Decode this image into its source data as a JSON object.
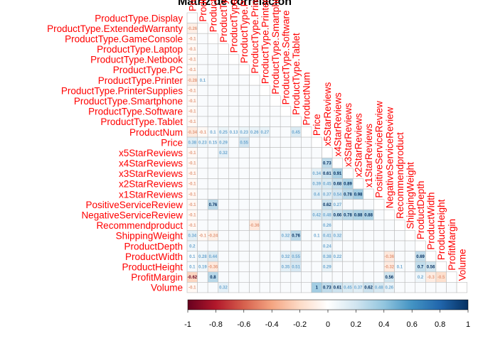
{
  "chart_data": {
    "type": "heatmap",
    "title": "Matriz de correlacion",
    "variables": [
      "ProductType.Display",
      "ProductType.ExtendedWarranty",
      "ProductType.GameConsole",
      "ProductType.Laptop",
      "ProductType.Netbook",
      "ProductType.PC",
      "ProductType.Printer",
      "ProductType.PrinterSupplies",
      "ProductType.Smartphone",
      "ProductType.Software",
      "ProductType.Tablet",
      "ProductNum",
      "Price",
      "x5StarReviews",
      "x4StarReviews",
      "x3StarReviews",
      "x2StarReviews",
      "x1StarReviews",
      "PositiveServiceReview",
      "NegativeServiceReview",
      "Recommendproduct",
      "ShippingWeight",
      "ProductDepth",
      "ProductWidth",
      "ProductHeight",
      "ProfitMargin",
      "Volume"
    ],
    "layout": "lower-triangle",
    "color_scale": {
      "range": [
        -1,
        1
      ],
      "ticks": [
        "-1",
        "-0.8",
        "-0.6",
        "-0.4",
        "-0.2",
        "0",
        "0.2",
        "0.4",
        "0.6",
        "0.8",
        "1"
      ],
      "colors": [
        "#67001F",
        "#B2182B",
        "#D6604D",
        "#F4A582",
        "#FDDBC7",
        "#FFFFFF",
        "#D1E5F0",
        "#92C5DE",
        "#4393C3",
        "#2166AC",
        "#053061"
      ]
    },
    "cells": [
      [
        1,
        0,
        -0.26
      ],
      [
        2,
        0,
        -0.1
      ],
      [
        3,
        0,
        -0.1
      ],
      [
        4,
        0,
        -0.1
      ],
      [
        5,
        0,
        -0.1
      ],
      [
        6,
        0,
        -0.28
      ],
      [
        7,
        0,
        -0.1
      ],
      [
        8,
        0,
        -0.1
      ],
      [
        9,
        0,
        -0.1
      ],
      [
        10,
        0,
        -0.1
      ],
      [
        11,
        0,
        -0.34
      ],
      [
        12,
        0,
        0.38
      ],
      [
        13,
        0,
        -0.1
      ],
      [
        14,
        0,
        -0.1
      ],
      [
        15,
        0,
        -0.1
      ],
      [
        16,
        0,
        -0.1
      ],
      [
        17,
        0,
        -0.1
      ],
      [
        18,
        0,
        -0.1
      ],
      [
        19,
        0,
        -0.1
      ],
      [
        20,
        0,
        -0.1
      ],
      [
        21,
        0,
        0.34
      ],
      [
        22,
        0,
        0.2
      ],
      [
        23,
        0,
        0.1
      ],
      [
        24,
        0,
        0.1
      ],
      [
        25,
        0,
        -0.62
      ],
      [
        26,
        0,
        -0.1
      ],
      [
        6,
        1,
        0.1
      ],
      [
        11,
        1,
        -0.1
      ],
      [
        12,
        1,
        0.23
      ],
      [
        21,
        1,
        -0.1
      ],
      [
        23,
        1,
        0.28
      ],
      [
        24,
        1,
        0.19
      ],
      [
        23,
        2,
        0.44
      ],
      [
        24,
        2,
        -0.36
      ],
      [
        25,
        2,
        0.8
      ],
      [
        18,
        2,
        0.76
      ],
      [
        21,
        2,
        -0.24
      ],
      [
        12,
        2,
        0.15
      ],
      [
        11,
        2,
        0.1
      ],
      [
        11,
        3,
        0.25
      ],
      [
        12,
        3,
        0.29
      ],
      [
        13,
        3,
        0.32
      ],
      [
        26,
        3,
        0.32
      ],
      [
        11,
        4,
        0.13
      ],
      [
        11,
        5,
        0.23
      ],
      [
        11,
        6,
        0.26
      ],
      [
        11,
        7,
        0.27
      ],
      [
        12,
        5,
        0.55
      ],
      [
        20,
        6,
        -0.36
      ],
      [
        21,
        9,
        0.32
      ],
      [
        21,
        10,
        0.76
      ],
      [
        23,
        9,
        0.32
      ],
      [
        23,
        10,
        0.55
      ],
      [
        24,
        9,
        0.35
      ],
      [
        24,
        10,
        0.51
      ],
      [
        11,
        10,
        0.45
      ],
      [
        11,
        11,
        0.18
      ],
      [
        11,
        12,
        0.33
      ],
      [
        14,
        13,
        0.73
      ],
      [
        15,
        13,
        0.61
      ],
      [
        15,
        14,
        0.91
      ],
      [
        16,
        13,
        0.45
      ],
      [
        16,
        14,
        0.68
      ],
      [
        16,
        15,
        0.89
      ],
      [
        17,
        13,
        0.37
      ],
      [
        17,
        14,
        0.54
      ],
      [
        17,
        15,
        0.78
      ],
      [
        17,
        16,
        0.98
      ],
      [
        18,
        13,
        0.62
      ],
      [
        18,
        14,
        0.27
      ],
      [
        19,
        13,
        0.48
      ],
      [
        19,
        14,
        0.66
      ],
      [
        19,
        15,
        0.78
      ],
      [
        19,
        16,
        0.88
      ],
      [
        19,
        17,
        0.88
      ],
      [
        20,
        13,
        0.26
      ],
      [
        21,
        13,
        0.41
      ],
      [
        21,
        14,
        0.32
      ],
      [
        15,
        12,
        0.34
      ],
      [
        16,
        12,
        0.39
      ],
      [
        17,
        12,
        0.4
      ],
      [
        19,
        12,
        0.42
      ],
      [
        21,
        12,
        0.1
      ],
      [
        22,
        13,
        0.24
      ],
      [
        23,
        13,
        0.38
      ],
      [
        23,
        14,
        0.22
      ],
      [
        24,
        13,
        0.29
      ],
      [
        23,
        19,
        -0.36
      ],
      [
        24,
        19,
        -0.32
      ],
      [
        24,
        20,
        0.1
      ],
      [
        25,
        19,
        0.56
      ],
      [
        26,
        12,
        1
      ],
      [
        26,
        13,
        0.73
      ],
      [
        26,
        14,
        0.61
      ],
      [
        26,
        15,
        0.45
      ],
      [
        26,
        16,
        0.37
      ],
      [
        26,
        17,
        0.62
      ],
      [
        26,
        18,
        0.48
      ],
      [
        26,
        19,
        0.26
      ],
      [
        23,
        22,
        0.69
      ],
      [
        24,
        22,
        0.7
      ],
      [
        24,
        23,
        0.56
      ],
      [
        25,
        23,
        -0.3
      ],
      [
        25,
        24,
        -0.5
      ],
      [
        25,
        22,
        0.2
      ]
    ]
  }
}
